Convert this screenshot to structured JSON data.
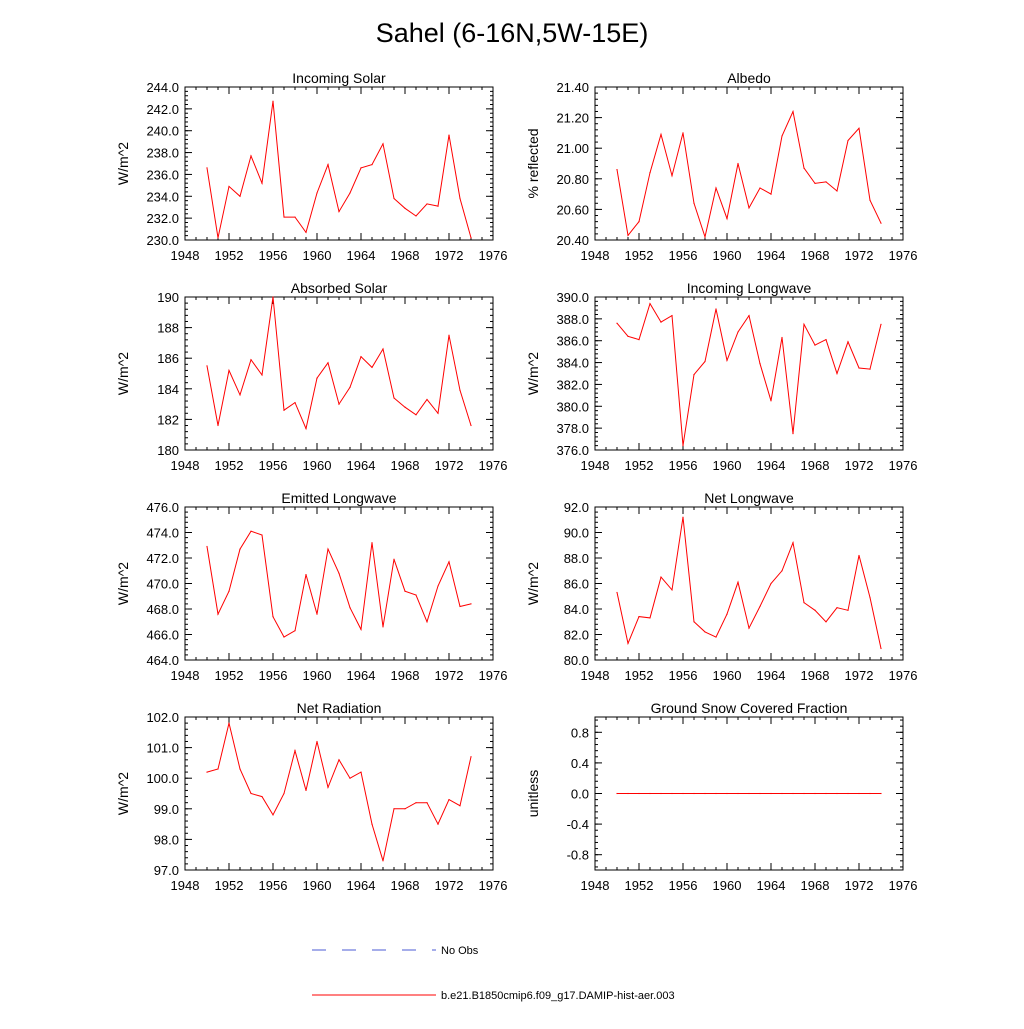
{
  "title": "Sahel (6-16N,5W-15E)",
  "legend": {
    "entries": [
      {
        "label": "No Obs",
        "color": "#4b5bd6",
        "style": "dashed"
      },
      {
        "label": "b.e21.B1850cmip6.f09_g17.DAMIP-hist-aer.003",
        "color": "#ff0000",
        "style": "solid"
      }
    ]
  },
  "chart_data": [
    {
      "type": "line",
      "title": "Incoming Solar",
      "ylabel": "W/m^2",
      "xlim": [
        1948,
        1976
      ],
      "ylim": [
        230.0,
        244.0
      ],
      "yticks": [
        "230.0",
        "232.0",
        "234.0",
        "236.0",
        "238.0",
        "240.0",
        "242.0",
        "244.0"
      ],
      "xticks": [
        "1948",
        "1952",
        "1956",
        "1960",
        "1964",
        "1968",
        "1972",
        "1976"
      ],
      "x": [
        1950,
        1951,
        1952,
        1953,
        1954,
        1955,
        1956,
        1957,
        1958,
        1959,
        1960,
        1961,
        1962,
        1963,
        1964,
        1965,
        1966,
        1967,
        1968,
        1969,
        1970,
        1971,
        1972,
        1973,
        1974
      ],
      "series": [
        {
          "color": "#ff0000",
          "values": [
            236.6,
            230.2,
            234.9,
            234.0,
            237.7,
            235.2,
            242.7,
            232.1,
            232.1,
            230.7,
            234.3,
            236.9,
            232.6,
            234.3,
            236.6,
            236.9,
            238.8,
            233.8,
            232.9,
            232.2,
            233.3,
            233.1,
            239.6,
            233.8,
            230.2
          ]
        }
      ]
    },
    {
      "type": "line",
      "title": "Albedo",
      "ylabel": "% reflected",
      "xlim": [
        1948,
        1976
      ],
      "ylim": [
        20.4,
        21.4
      ],
      "yticks": [
        "20.40",
        "20.60",
        "20.80",
        "21.00",
        "21.20",
        "21.40"
      ],
      "xticks": [
        "1948",
        "1952",
        "1956",
        "1960",
        "1964",
        "1968",
        "1972",
        "1976"
      ],
      "x": [
        1950,
        1951,
        1952,
        1953,
        1954,
        1955,
        1956,
        1957,
        1958,
        1959,
        1960,
        1961,
        1962,
        1963,
        1964,
        1965,
        1966,
        1967,
        1968,
        1969,
        1970,
        1971,
        1972,
        1973,
        1974
      ],
      "series": [
        {
          "color": "#ff0000",
          "values": [
            20.86,
            20.43,
            20.52,
            20.84,
            21.09,
            20.82,
            21.1,
            20.64,
            20.42,
            20.74,
            20.54,
            20.9,
            20.61,
            20.74,
            20.7,
            21.08,
            21.24,
            20.87,
            20.77,
            20.78,
            20.72,
            21.05,
            21.13,
            20.66,
            20.51
          ]
        }
      ]
    },
    {
      "type": "line",
      "title": "Absorbed Solar",
      "ylabel": "W/m^2",
      "xlim": [
        1948,
        1976
      ],
      "ylim": [
        180,
        190
      ],
      "yticks": [
        "180",
        "182",
        "184",
        "186",
        "188",
        "190"
      ],
      "xticks": [
        "1948",
        "1952",
        "1956",
        "1960",
        "1964",
        "1968",
        "1972",
        "1976"
      ],
      "x": [
        1950,
        1951,
        1952,
        1953,
        1954,
        1955,
        1956,
        1957,
        1958,
        1959,
        1960,
        1961,
        1962,
        1963,
        1964,
        1965,
        1966,
        1967,
        1968,
        1969,
        1970,
        1971,
        1972,
        1973,
        1974
      ],
      "series": [
        {
          "color": "#ff0000",
          "values": [
            185.5,
            181.6,
            185.2,
            183.6,
            185.9,
            184.9,
            190.0,
            182.6,
            183.1,
            181.4,
            184.7,
            185.7,
            183.0,
            184.1,
            186.1,
            185.4,
            186.6,
            183.4,
            182.8,
            182.3,
            183.3,
            182.4,
            187.5,
            183.9,
            181.6
          ]
        }
      ]
    },
    {
      "type": "line",
      "title": "Incoming Longwave",
      "ylabel": "W/m^2",
      "xlim": [
        1948,
        1976
      ],
      "ylim": [
        376.0,
        390.0
      ],
      "yticks": [
        "376.0",
        "378.0",
        "380.0",
        "382.0",
        "384.0",
        "386.0",
        "388.0",
        "390.0"
      ],
      "xticks": [
        "1948",
        "1952",
        "1956",
        "1960",
        "1964",
        "1968",
        "1972",
        "1976"
      ],
      "x": [
        1950,
        1951,
        1952,
        1953,
        1954,
        1955,
        1956,
        1957,
        1958,
        1959,
        1960,
        1961,
        1962,
        1963,
        1964,
        1965,
        1966,
        1967,
        1968,
        1969,
        1970,
        1971,
        1972,
        1973,
        1974
      ],
      "series": [
        {
          "color": "#ff0000",
          "values": [
            387.6,
            386.4,
            386.1,
            389.4,
            387.7,
            388.3,
            376.4,
            382.9,
            384.1,
            388.9,
            384.2,
            386.8,
            388.3,
            383.9,
            380.5,
            386.3,
            377.5,
            387.5,
            385.6,
            386.1,
            383.0,
            385.9,
            383.5,
            383.4,
            387.5
          ]
        }
      ]
    },
    {
      "type": "line",
      "title": "Emitted Longwave",
      "ylabel": "W/m^2",
      "xlim": [
        1948,
        1976
      ],
      "ylim": [
        464.0,
        476.0
      ],
      "yticks": [
        "464.0",
        "466.0",
        "468.0",
        "470.0",
        "472.0",
        "474.0",
        "476.0"
      ],
      "xticks": [
        "1948",
        "1952",
        "1956",
        "1960",
        "1964",
        "1968",
        "1972",
        "1976"
      ],
      "x": [
        1950,
        1951,
        1952,
        1953,
        1954,
        1955,
        1956,
        1957,
        1958,
        1959,
        1960,
        1961,
        1962,
        1963,
        1964,
        1965,
        1966,
        1967,
        1968,
        1969,
        1970,
        1971,
        1972,
        1973,
        1974
      ],
      "series": [
        {
          "color": "#ff0000",
          "values": [
            472.9,
            467.6,
            469.4,
            472.7,
            474.1,
            473.8,
            467.4,
            465.8,
            466.3,
            470.7,
            467.6,
            472.7,
            470.8,
            468.1,
            466.4,
            473.2,
            466.6,
            471.9,
            469.4,
            469.1,
            467.0,
            469.8,
            471.7,
            468.2,
            468.4
          ]
        }
      ]
    },
    {
      "type": "line",
      "title": "Net Longwave",
      "ylabel": "W/m^2",
      "xlim": [
        1948,
        1976
      ],
      "ylim": [
        80.0,
        92.0
      ],
      "yticks": [
        "80.0",
        "82.0",
        "84.0",
        "86.0",
        "88.0",
        "90.0",
        "92.0"
      ],
      "xticks": [
        "1948",
        "1952",
        "1956",
        "1960",
        "1964",
        "1968",
        "1972",
        "1976"
      ],
      "x": [
        1950,
        1951,
        1952,
        1953,
        1954,
        1955,
        1956,
        1957,
        1958,
        1959,
        1960,
        1961,
        1962,
        1963,
        1964,
        1965,
        1966,
        1967,
        1968,
        1969,
        1970,
        1971,
        1972,
        1973,
        1974
      ],
      "series": [
        {
          "color": "#ff0000",
          "values": [
            85.3,
            81.3,
            83.4,
            83.3,
            86.5,
            85.5,
            91.2,
            83.0,
            82.2,
            81.8,
            83.6,
            86.1,
            82.5,
            84.2,
            86.0,
            87.0,
            89.2,
            84.5,
            83.9,
            83.0,
            84.1,
            83.9,
            88.2,
            84.9,
            80.9
          ]
        }
      ]
    },
    {
      "type": "line",
      "title": "Net Radiation",
      "ylabel": "W/m^2",
      "xlim": [
        1948,
        1976
      ],
      "ylim": [
        97.0,
        102.0
      ],
      "yticks": [
        "97.0",
        "98.0",
        "99.0",
        "100.0",
        "101.0",
        "102.0"
      ],
      "xticks": [
        "1948",
        "1952",
        "1956",
        "1960",
        "1964",
        "1968",
        "1972",
        "1976"
      ],
      "x": [
        1950,
        1951,
        1952,
        1953,
        1954,
        1955,
        1956,
        1957,
        1958,
        1959,
        1960,
        1961,
        1962,
        1963,
        1964,
        1965,
        1966,
        1967,
        1968,
        1969,
        1970,
        1971,
        1972,
        1973,
        1974
      ],
      "series": [
        {
          "color": "#ff0000",
          "values": [
            100.2,
            100.3,
            101.8,
            100.3,
            99.5,
            99.4,
            98.8,
            99.5,
            100.9,
            99.6,
            101.2,
            99.7,
            100.6,
            100.0,
            100.2,
            98.5,
            97.3,
            99.0,
            99.0,
            99.2,
            99.2,
            98.5,
            99.3,
            99.1,
            100.7
          ]
        }
      ]
    },
    {
      "type": "line",
      "title": "Ground Snow Covered Fraction",
      "ylabel": "unitless",
      "xlim": [
        1948,
        1976
      ],
      "ylim": [
        -1.0,
        1.0
      ],
      "yticks": [
        "-0.8",
        "-0.4",
        "0.0",
        "0.4",
        "0.8"
      ],
      "ytick_values": [
        -0.8,
        -0.4,
        0.0,
        0.4,
        0.8
      ],
      "xticks": [
        "1948",
        "1952",
        "1956",
        "1960",
        "1964",
        "1968",
        "1972",
        "1976"
      ],
      "x": [
        1950,
        1951,
        1952,
        1953,
        1954,
        1955,
        1956,
        1957,
        1958,
        1959,
        1960,
        1961,
        1962,
        1963,
        1964,
        1965,
        1966,
        1967,
        1968,
        1969,
        1970,
        1971,
        1972,
        1973,
        1974
      ],
      "series": [
        {
          "color": "#ff0000",
          "values": [
            0,
            0,
            0,
            0,
            0,
            0,
            0,
            0,
            0,
            0,
            0,
            0,
            0,
            0,
            0,
            0,
            0,
            0,
            0,
            0,
            0,
            0,
            0,
            0,
            0
          ]
        }
      ]
    }
  ]
}
